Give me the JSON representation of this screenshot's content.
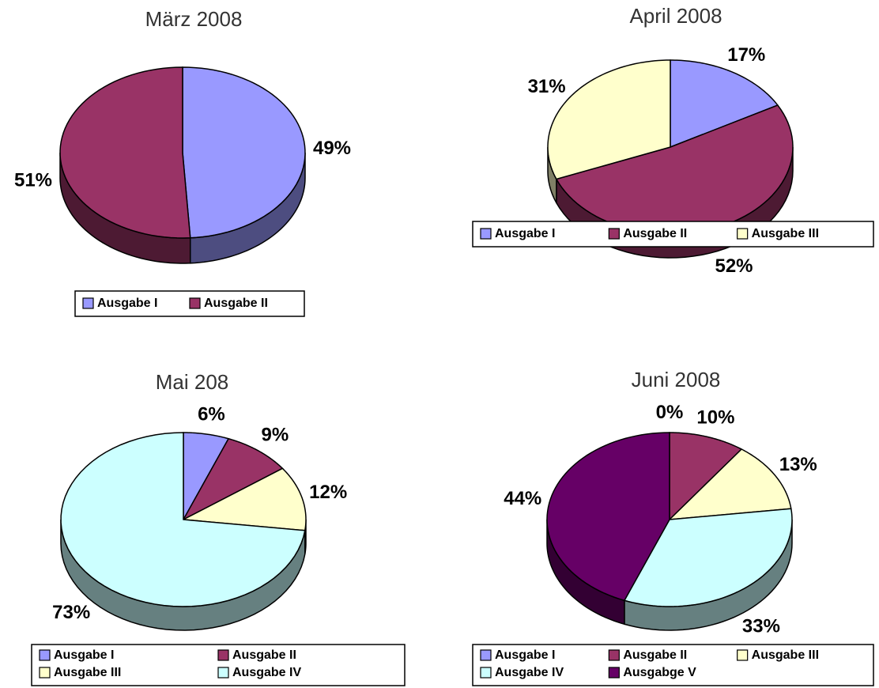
{
  "chart_data": [
    {
      "type": "pie",
      "title": "März 2008",
      "categories": [
        "Ausgabe I",
        "Ausgabe II"
      ],
      "values": [
        49,
        51
      ],
      "value_labels": [
        "49%",
        "51%"
      ],
      "colors": [
        "#9999ff",
        "#993366"
      ]
    },
    {
      "type": "pie",
      "title": "April 2008",
      "categories": [
        "Ausgabe I",
        "Ausgabe II",
        "Ausgabe III"
      ],
      "values": [
        17,
        52,
        31
      ],
      "value_labels": [
        "17%",
        "52%",
        "31%"
      ],
      "colors": [
        "#9999ff",
        "#993366",
        "#ffffcc"
      ]
    },
    {
      "type": "pie",
      "title": "Mai 208",
      "categories": [
        "Ausgabe I",
        "Ausgabe II",
        "Ausgabe III",
        "Ausgabe IV"
      ],
      "values": [
        6,
        9,
        12,
        73
      ],
      "value_labels": [
        "6%",
        "9%",
        "12%",
        "73%"
      ],
      "colors": [
        "#9999ff",
        "#993366",
        "#ffffcc",
        "#ccffff"
      ]
    },
    {
      "type": "pie",
      "title": "Juni 2008",
      "categories": [
        "Ausgabe I",
        "Ausgabe II",
        "Ausgabe III",
        "Ausgabe IV",
        "Ausgabge V"
      ],
      "values": [
        0,
        10,
        13,
        33,
        44
      ],
      "value_labels": [
        "0%",
        "10%",
        "13%",
        "33%",
        "44%"
      ],
      "colors": [
        "#9999ff",
        "#993366",
        "#ffffcc",
        "#ccffff",
        "#660066"
      ]
    }
  ]
}
